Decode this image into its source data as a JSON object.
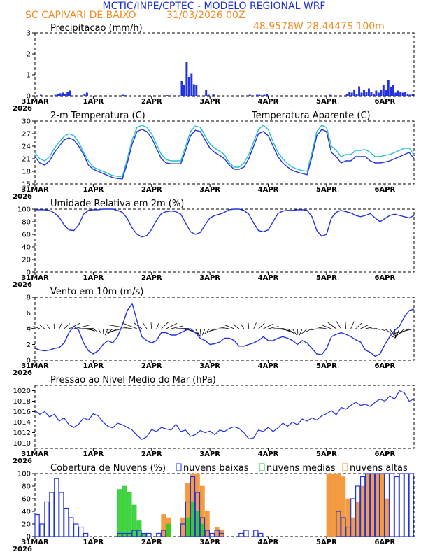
{
  "header": {
    "title": "MCTIC/INPE/CPTEC - MODELO REGIONAL WRF",
    "station": "SC CAPIVARI DE BAIXO",
    "run": "31/03/2026 00Z",
    "coords": "48.9578W 28.4447S 100m"
  },
  "colors": {
    "title": "#1a2fd6",
    "orange": "#f28b22",
    "blue": "#2233dd",
    "cyan": "#22c4c4",
    "green": "#22cc22",
    "grid": "#000000"
  },
  "x_axis": {
    "hours": 156,
    "labels": [
      {
        "text": "31MAR",
        "hour": 0
      },
      {
        "text": "1APR",
        "hour": 24
      },
      {
        "text": "2APR",
        "hour": 48
      },
      {
        "text": "3APR",
        "hour": 72
      },
      {
        "text": "4APR",
        "hour": 96
      },
      {
        "text": "5APR",
        "hour": 120
      },
      {
        "text": "6APR",
        "hour": 144
      }
    ],
    "year": "2026"
  },
  "chart_data": [
    {
      "id": "precip",
      "type": "bar",
      "title": "Precipitacao (mm/h)",
      "ylim": [
        0,
        3
      ],
      "yticks": [
        0,
        1,
        2,
        3
      ],
      "x": [
        2,
        8,
        9,
        10,
        11,
        12,
        13,
        14,
        20,
        21,
        36,
        37,
        54,
        60,
        61,
        62,
        63,
        64,
        65,
        66,
        70,
        71,
        73,
        88,
        91,
        92,
        94,
        95,
        121,
        128,
        129,
        130,
        131,
        132,
        133,
        134,
        135,
        136,
        137,
        138,
        139,
        140,
        141,
        142,
        143,
        144,
        145,
        146,
        147,
        148,
        149,
        150,
        151,
        152,
        153,
        154,
        155
      ],
      "values": [
        0.05,
        0.05,
        0.1,
        0.12,
        0.15,
        0.08,
        0.2,
        0.25,
        0.1,
        0.15,
        0.05,
        0.03,
        0.03,
        0.7,
        0.5,
        1.6,
        0.9,
        1.05,
        0.55,
        0.5,
        0.3,
        0.05,
        0.08,
        0.05,
        0.05,
        0.05,
        0.05,
        0.08,
        0.05,
        0.1,
        0.2,
        0.15,
        0.3,
        0.1,
        0.45,
        0.15,
        0.3,
        0.2,
        0.35,
        0.2,
        0.1,
        0.25,
        0.15,
        0.3,
        0.5,
        0.3,
        0.75,
        0.4,
        0.5,
        0.15,
        0.25,
        0.2,
        0.15,
        0.2,
        0.1,
        0.05,
        0.1
      ]
    },
    {
      "id": "temp",
      "type": "line",
      "title": "2-m Temperatura (C)",
      "legend": "Temperatura Aparente (C)",
      "ylim": [
        15,
        30
      ],
      "yticks": [
        15,
        18,
        21,
        24,
        27,
        30
      ],
      "x": [
        0,
        2,
        4,
        6,
        8,
        10,
        12,
        14,
        16,
        18,
        20,
        22,
        24,
        26,
        28,
        30,
        32,
        34,
        36,
        38,
        40,
        42,
        44,
        46,
        48,
        50,
        52,
        54,
        56,
        58,
        60,
        62,
        64,
        66,
        68,
        70,
        72,
        74,
        76,
        78,
        80,
        82,
        84,
        86,
        88,
        90,
        92,
        94,
        96,
        98,
        100,
        102,
        104,
        106,
        108,
        110,
        112,
        114,
        116,
        118,
        120,
        122,
        124,
        126,
        128,
        130,
        132,
        134,
        136,
        138,
        140,
        142,
        144,
        146,
        148,
        150,
        152,
        154,
        156
      ],
      "series": [
        {
          "name": "Temperatura 2m",
          "color": "blue",
          "values": [
            21.5,
            20.0,
            19.5,
            20.5,
            22.5,
            24.0,
            25.5,
            26.0,
            25.5,
            24.0,
            22.0,
            19.5,
            18.5,
            18.0,
            17.5,
            17.0,
            16.5,
            16.3,
            16.2,
            20.0,
            24.5,
            27.5,
            28.0,
            27.5,
            26.0,
            23.5,
            21.0,
            20.0,
            19.8,
            19.8,
            19.8,
            23.0,
            26.5,
            27.8,
            27.5,
            25.5,
            23.5,
            22.5,
            21.8,
            21.0,
            19.5,
            18.5,
            18.5,
            19.0,
            21.0,
            24.0,
            27.0,
            27.5,
            26.5,
            24.0,
            21.5,
            20.0,
            19.0,
            18.2,
            17.8,
            17.5,
            17.2,
            21.5,
            26.5,
            28.0,
            27.5,
            22.5,
            21.5,
            20.0,
            20.5,
            20.5,
            21.5,
            21.5,
            21.5,
            20.5,
            20.0,
            20.0,
            20.2,
            20.5,
            21.0,
            21.5,
            22.0,
            22.5,
            21.0
          ]
        },
        {
          "name": "Temperatura Aparente",
          "color": "cyan",
          "values": [
            22.5,
            21.0,
            20.5,
            21.5,
            23.5,
            25.0,
            26.3,
            27.0,
            26.5,
            25.0,
            22.5,
            20.5,
            19.0,
            18.5,
            18.0,
            17.5,
            17.0,
            16.8,
            16.8,
            21.0,
            25.5,
            28.5,
            29.0,
            28.5,
            27.0,
            24.5,
            22.0,
            20.8,
            20.5,
            20.5,
            20.5,
            24.0,
            27.5,
            28.8,
            28.5,
            26.5,
            24.5,
            23.5,
            22.8,
            22.0,
            20.0,
            19.0,
            19.0,
            20.0,
            22.0,
            25.0,
            28.0,
            29.0,
            28.0,
            25.0,
            22.5,
            21.0,
            19.8,
            19.0,
            18.5,
            18.2,
            18.0,
            22.5,
            27.5,
            29.0,
            28.5,
            24.0,
            23.0,
            21.5,
            22.0,
            22.0,
            23.0,
            23.0,
            23.2,
            22.5,
            21.5,
            21.5,
            21.8,
            22.0,
            22.5,
            23.0,
            23.5,
            23.5,
            22.0
          ]
        }
      ]
    },
    {
      "id": "rh",
      "type": "line",
      "title": "Umidade Relativa em 2m (%)",
      "ylim": [
        0,
        100
      ],
      "yticks": [
        0,
        20,
        40,
        60,
        80,
        100
      ],
      "x": [
        0,
        2,
        4,
        6,
        8,
        10,
        12,
        14,
        16,
        18,
        20,
        22,
        24,
        26,
        28,
        30,
        32,
        34,
        36,
        38,
        40,
        42,
        44,
        46,
        48,
        50,
        52,
        54,
        56,
        58,
        60,
        62,
        64,
        66,
        68,
        70,
        72,
        74,
        76,
        78,
        80,
        82,
        84,
        86,
        88,
        90,
        92,
        94,
        96,
        98,
        100,
        102,
        104,
        106,
        108,
        110,
        112,
        114,
        116,
        118,
        120,
        122,
        124,
        126,
        128,
        130,
        132,
        134,
        136,
        138,
        140,
        142,
        144,
        146,
        148,
        150,
        152,
        154,
        156
      ],
      "values": [
        99,
        99,
        99,
        98,
        94,
        87,
        75,
        67,
        66,
        75,
        92,
        98,
        99,
        99,
        100,
        100,
        100,
        98,
        95,
        85,
        70,
        60,
        56,
        58,
        68,
        82,
        93,
        96,
        97,
        96,
        92,
        78,
        64,
        60,
        63,
        75,
        86,
        90,
        92,
        95,
        99,
        100,
        100,
        98,
        92,
        78,
        66,
        64,
        67,
        80,
        93,
        97,
        98,
        98,
        99,
        99,
        98,
        88,
        66,
        57,
        60,
        86,
        95,
        98,
        96,
        94,
        90,
        88,
        90,
        93,
        86,
        80,
        85,
        90,
        92,
        90,
        88,
        86,
        90
      ]
    },
    {
      "id": "wind",
      "type": "line",
      "title": "Vento em 10m (m/s)",
      "ylim": [
        0,
        8
      ],
      "yticks": [
        0,
        2,
        4,
        6,
        8
      ],
      "x": [
        0,
        2,
        4,
        6,
        8,
        10,
        12,
        14,
        16,
        18,
        20,
        22,
        24,
        26,
        28,
        30,
        32,
        34,
        36,
        38,
        40,
        42,
        44,
        46,
        48,
        50,
        52,
        54,
        56,
        58,
        60,
        62,
        64,
        66,
        68,
        70,
        72,
        74,
        76,
        78,
        80,
        82,
        84,
        86,
        88,
        90,
        92,
        94,
        96,
        98,
        100,
        102,
        104,
        106,
        108,
        110,
        112,
        114,
        116,
        118,
        120,
        122,
        124,
        126,
        128,
        130,
        132,
        134,
        136,
        138,
        140,
        142,
        144,
        146,
        148,
        150,
        152,
        154,
        156
      ],
      "values": [
        1.5,
        1.3,
        1.2,
        1.3,
        1.5,
        1.6,
        2.2,
        3.5,
        4.3,
        3.8,
        2.2,
        1.2,
        0.8,
        1.2,
        2.0,
        2.5,
        2.2,
        3.0,
        4.5,
        6.3,
        7.2,
        5.0,
        3.0,
        2.5,
        2.2,
        2.5,
        3.5,
        3.5,
        3.2,
        3.2,
        3.5,
        3.8,
        4.0,
        3.5,
        2.8,
        2.5,
        2.0,
        2.1,
        2.3,
        2.8,
        2.8,
        2.5,
        1.8,
        1.8,
        2.0,
        2.2,
        2.5,
        3.0,
        2.5,
        2.5,
        2.8,
        3.0,
        2.8,
        2.5,
        2.0,
        2.5,
        2.2,
        1.5,
        0.8,
        0.7,
        1.5,
        3.0,
        3.3,
        3.5,
        3.3,
        3.0,
        2.6,
        2.3,
        1.3,
        1.0,
        0.5,
        0.8,
        2.0,
        3.0,
        3.8,
        4.3,
        5.5,
        6.3,
        6.5
      ]
    },
    {
      "id": "pressure",
      "type": "line",
      "title": "Pressao ao Nivel Medio do Mar (hPa)",
      "ylim": [
        1009,
        1021
      ],
      "yticks": [
        1010,
        1012,
        1014,
        1016,
        1018,
        1020
      ],
      "x": [
        0,
        2,
        4,
        6,
        8,
        10,
        12,
        14,
        16,
        18,
        20,
        22,
        24,
        26,
        28,
        30,
        32,
        34,
        36,
        38,
        40,
        42,
        44,
        46,
        48,
        50,
        52,
        54,
        56,
        58,
        60,
        62,
        64,
        66,
        68,
        70,
        72,
        74,
        76,
        78,
        80,
        82,
        84,
        86,
        88,
        90,
        92,
        94,
        96,
        98,
        100,
        102,
        104,
        106,
        108,
        110,
        112,
        114,
        116,
        118,
        120,
        122,
        124,
        126,
        128,
        130,
        132,
        134,
        136,
        138,
        140,
        142,
        144,
        146,
        148,
        150,
        152,
        154,
        156
      ],
      "values": [
        1016.2,
        1015.5,
        1016.0,
        1015.0,
        1015.5,
        1014.2,
        1014.8,
        1013.5,
        1013.0,
        1013.6,
        1014.8,
        1014.4,
        1015.6,
        1015.2,
        1014.0,
        1013.2,
        1012.9,
        1013.8,
        1013.5,
        1013.0,
        1012.5,
        1011.5,
        1010.7,
        1011.2,
        1012.6,
        1012.2,
        1013.0,
        1012.7,
        1012.5,
        1013.6,
        1012.2,
        1012.5,
        1011.3,
        1011.6,
        1012.4,
        1012.0,
        1012.3,
        1011.6,
        1012.5,
        1012.2,
        1012.8,
        1013.1,
        1012.8,
        1012.0,
        1010.8,
        1011.0,
        1012.5,
        1012.2,
        1013.0,
        1012.2,
        1012.9,
        1013.8,
        1013.2,
        1014.0,
        1013.5,
        1014.6,
        1014.2,
        1014.8,
        1014.4,
        1015.2,
        1015.6,
        1016.2,
        1015.4,
        1016.8,
        1016.5,
        1017.2,
        1017.8,
        1017.2,
        1017.4,
        1017.0,
        1017.8,
        1018.4,
        1018.0,
        1019.0,
        1018.4,
        1020.0,
        1019.6,
        1018.0,
        1018.4
      ]
    },
    {
      "id": "clouds",
      "type": "bar",
      "title": "Cobertura de Nuvens (%)",
      "legend": [
        "nuvens baixas",
        "nuvens medias",
        "nuvens altas"
      ],
      "ylim": [
        0,
        100
      ],
      "yticks": [
        0,
        20,
        40,
        60,
        80,
        100
      ],
      "x": [
        0,
        2,
        4,
        6,
        8,
        10,
        12,
        14,
        16,
        18,
        20,
        22,
        24,
        26,
        28,
        30,
        32,
        34,
        36,
        38,
        40,
        42,
        44,
        46,
        48,
        50,
        52,
        54,
        56,
        58,
        60,
        62,
        64,
        66,
        68,
        70,
        72,
        74,
        76,
        78,
        80,
        82,
        84,
        86,
        88,
        90,
        92,
        94,
        96,
        98,
        100,
        102,
        104,
        106,
        108,
        110,
        112,
        114,
        116,
        118,
        120,
        122,
        124,
        126,
        128,
        130,
        132,
        134,
        136,
        138,
        140,
        142,
        144,
        146,
        148,
        150,
        152,
        154
      ],
      "series": [
        {
          "name": "nuvens altas",
          "color": "orange",
          "values": [
            0,
            0,
            0,
            0,
            0,
            0,
            0,
            0,
            0,
            0,
            0,
            0,
            0,
            0,
            0,
            0,
            0,
            0,
            0,
            0,
            0,
            0,
            0,
            0,
            0,
            0,
            35,
            30,
            0,
            0,
            30,
            85,
            100,
            100,
            80,
            40,
            0,
            15,
            10,
            0,
            0,
            0,
            0,
            0,
            0,
            0,
            0,
            0,
            0,
            0,
            0,
            0,
            0,
            0,
            0,
            0,
            0,
            0,
            0,
            0,
            100,
            100,
            100,
            95,
            60,
            30,
            55,
            80,
            100,
            100,
            100,
            100,
            60,
            0,
            0,
            0,
            0,
            0
          ]
        },
        {
          "name": "nuvens medias",
          "color": "green",
          "values": [
            0,
            0,
            0,
            0,
            0,
            0,
            0,
            0,
            0,
            0,
            0,
            0,
            0,
            0,
            0,
            0,
            0,
            75,
            80,
            70,
            50,
            25,
            5,
            0,
            0,
            0,
            0,
            20,
            0,
            0,
            0,
            30,
            55,
            40,
            20,
            0,
            0,
            0,
            0,
            0,
            0,
            0,
            0,
            0,
            0,
            0,
            0,
            0,
            0,
            0,
            0,
            0,
            0,
            0,
            0,
            0,
            0,
            0,
            0,
            0,
            0,
            0,
            0,
            0,
            0,
            0,
            0,
            0,
            0,
            0,
            0,
            0,
            0,
            0,
            0,
            0,
            0,
            0
          ]
        },
        {
          "name": "nuvens baixas",
          "color": "blue",
          "values": [
            35,
            20,
            55,
            70,
            92,
            70,
            45,
            30,
            20,
            15,
            5,
            0,
            0,
            0,
            0,
            0,
            0,
            5,
            5,
            5,
            10,
            10,
            5,
            5,
            0,
            5,
            10,
            0,
            0,
            0,
            20,
            55,
            95,
            70,
            30,
            10,
            5,
            10,
            5,
            0,
            0,
            0,
            5,
            10,
            0,
            10,
            5,
            0,
            0,
            0,
            0,
            0,
            0,
            0,
            0,
            0,
            0,
            0,
            0,
            0,
            0,
            0,
            40,
            30,
            15,
            60,
            80,
            95,
            100,
            100,
            100,
            100,
            100,
            100,
            95,
            100,
            100,
            100
          ]
        }
      ]
    }
  ]
}
